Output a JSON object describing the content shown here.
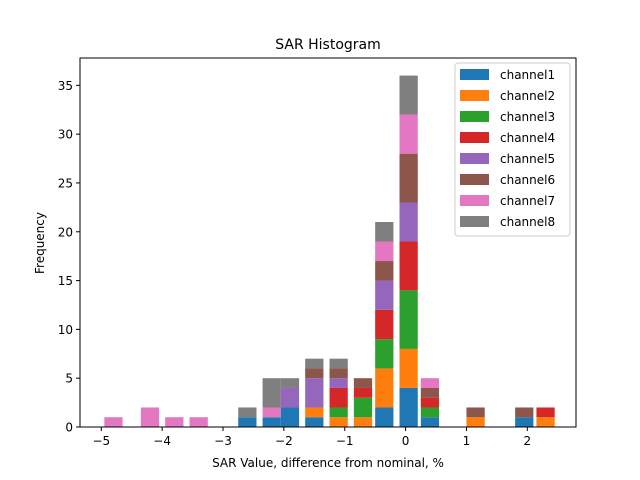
{
  "chart_data": {
    "type": "bar",
    "stacked": true,
    "title": "SAR Histogram",
    "xlabel": "SAR Value, difference from nominal, %",
    "ylabel": "Frequency",
    "xlim": [
      -5.35,
      2.8
    ],
    "ylim": [
      0,
      37.8
    ],
    "xticks": [
      -5,
      -4,
      -3,
      -2,
      -1,
      0,
      1,
      2
    ],
    "xtick_labels": [
      "−5",
      "−4",
      "−3",
      "−2",
      "−1",
      "0",
      "1",
      "2"
    ],
    "yticks": [
      0,
      5,
      10,
      15,
      20,
      25,
      30,
      35
    ],
    "ytick_labels": [
      "0",
      "5",
      "10",
      "15",
      "20",
      "25",
      "30",
      "35"
    ],
    "bar_width": 0.3,
    "legend_position": "top-right",
    "bins": [
      -4.8,
      -4.2,
      -3.8,
      -3.4,
      -2.6,
      -2.2,
      -1.9,
      -1.5,
      -1.1,
      -0.7,
      -0.35,
      0.05,
      0.4,
      1.15,
      1.95,
      2.3
    ],
    "series": [
      {
        "name": "channel1",
        "color": "#1f77b4",
        "values": [
          0,
          0,
          0,
          0,
          1,
          1,
          2,
          1,
          0,
          0,
          2,
          4,
          1,
          0,
          1,
          0
        ]
      },
      {
        "name": "channel2",
        "color": "#ff7f0e",
        "values": [
          0,
          0,
          0,
          0,
          0,
          0,
          0,
          1,
          1,
          1,
          4,
          4,
          0,
          1,
          0,
          1
        ]
      },
      {
        "name": "channel3",
        "color": "#2ca02c",
        "values": [
          0,
          0,
          0,
          0,
          0,
          0,
          0,
          0,
          1,
          2,
          3,
          6,
          1,
          0,
          0,
          0
        ]
      },
      {
        "name": "channel4",
        "color": "#d62728",
        "values": [
          0,
          0,
          0,
          0,
          0,
          0,
          0,
          0,
          2,
          1,
          3,
          5,
          1,
          0,
          0,
          1
        ]
      },
      {
        "name": "channel5",
        "color": "#9467bd",
        "values": [
          0,
          0,
          0,
          0,
          0,
          0,
          2,
          3,
          1,
          0,
          3,
          4,
          0,
          0,
          0,
          0
        ]
      },
      {
        "name": "channel6",
        "color": "#8c564b",
        "values": [
          0,
          0,
          0,
          0,
          0,
          0,
          0,
          1,
          1,
          1,
          2,
          5,
          1,
          1,
          1,
          0
        ]
      },
      {
        "name": "channel7",
        "color": "#e377c2",
        "values": [
          1,
          2,
          1,
          1,
          0,
          1,
          0,
          0,
          0,
          0,
          2,
          4,
          1,
          0,
          0,
          0
        ]
      },
      {
        "name": "channel8",
        "color": "#7f7f7f",
        "values": [
          0,
          0,
          0,
          0,
          1,
          3,
          1,
          1,
          1,
          0,
          2,
          4,
          0,
          0,
          0,
          0
        ]
      }
    ]
  }
}
